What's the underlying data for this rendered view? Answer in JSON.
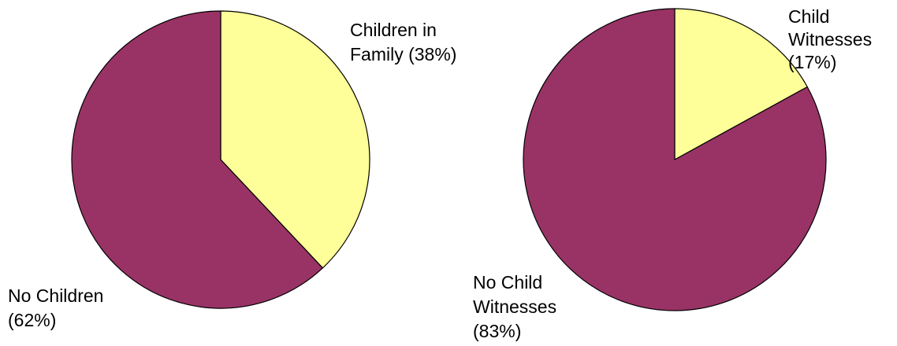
{
  "chart_data": [
    {
      "type": "pie",
      "labels": [
        "Children in Family (38%)",
        "No Children (62%)"
      ],
      "values": [
        38,
        62
      ],
      "colors": [
        "#ffff99",
        "#993366"
      ],
      "label_lines": [
        [
          "Children in",
          "Family (38%)"
        ],
        [
          "No Children",
          "(62%)"
        ]
      ],
      "start": "12 o'clock",
      "direction": "clockwise"
    },
    {
      "type": "pie",
      "labels": [
        "Child Witnesses (17%)",
        "No Child Witnesses (83%)"
      ],
      "values": [
        17,
        83
      ],
      "colors": [
        "#ffff99",
        "#993366"
      ],
      "label_lines": [
        [
          "Child",
          "Witnesses",
          "(17%)"
        ],
        [
          "No Child",
          "Witnesses",
          "(83%)"
        ]
      ],
      "start": "12 o'clock",
      "direction": "clockwise"
    }
  ]
}
